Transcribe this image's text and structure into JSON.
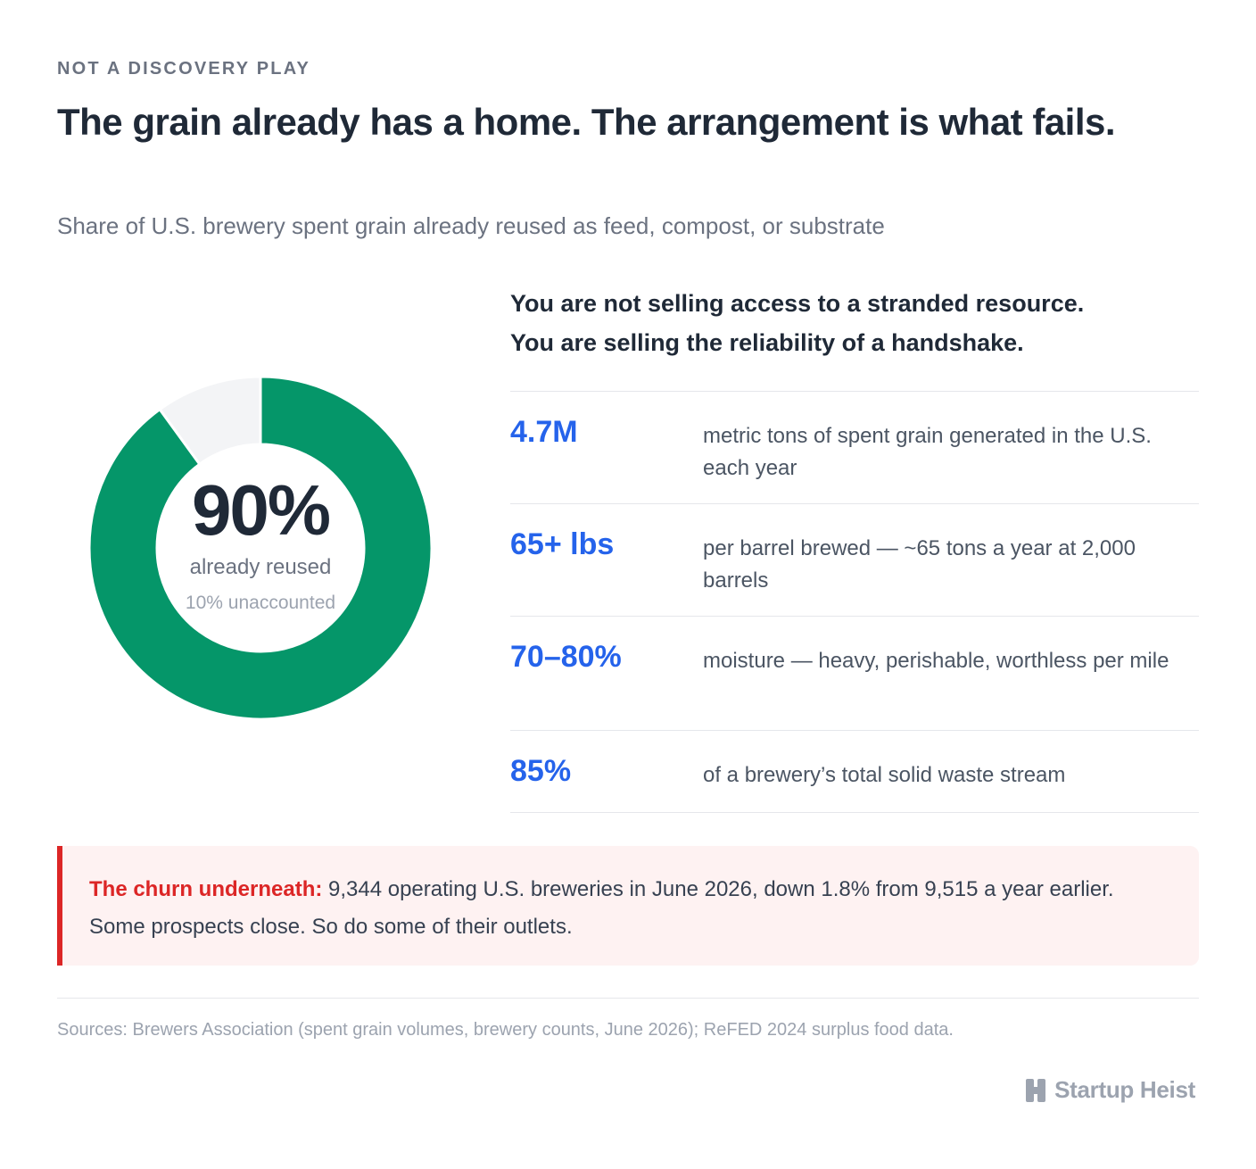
{
  "eyebrow": "NOT A DISCOVERY PLAY",
  "title": "The grain already has a home. The arrangement is what fails.",
  "subtitle": "Share of U.S. brewery spent grain already reused as feed, compost, or substrate",
  "colors": {
    "reused": "#059669",
    "unaccounted": "#f3f4f6",
    "accent_blue": "#2563eb",
    "alert_red": "#dc2626"
  },
  "chart_data": {
    "type": "pie",
    "variant": "donut",
    "categories": [
      "already reused",
      "unaccounted"
    ],
    "values": [
      90,
      10
    ],
    "center_value": "90%",
    "center_label": "already reused",
    "center_sub": "10% unaccounted"
  },
  "panel": {
    "lead_line1": "You are not selling access to a stranded resource.",
    "lead_line2": "You are selling the reliability of a handshake.",
    "stats": [
      {
        "value": "4.7M",
        "desc": "metric tons of spent grain generated in the U.S. each year"
      },
      {
        "value": "65+ lbs",
        "desc": "per barrel brewed — ~65 tons a year at 2,000 barrels"
      },
      {
        "value": "70–80%",
        "desc": "moisture — heavy, perishable, worthless per mile"
      },
      {
        "value": "85%",
        "desc": "of a brewery’s total solid waste stream"
      }
    ]
  },
  "callout": {
    "lead": "The churn underneath:",
    "text": " 9,344 operating U.S. breweries in June 2026, down 1.8% from 9,515 a year earlier. Some prospects close. So do some of their outlets."
  },
  "sources": "Sources: Brewers Association (spent grain volumes, brewery counts, June 2026); ReFED 2024 surplus food data.",
  "brand": {
    "name": "Startup Heist",
    "icon": "building-logo-icon"
  }
}
